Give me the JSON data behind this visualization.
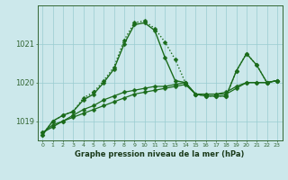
{
  "x_ticks": [
    0,
    1,
    2,
    3,
    4,
    5,
    6,
    7,
    8,
    9,
    10,
    11,
    12,
    13,
    14,
    15,
    16,
    17,
    18,
    19,
    20,
    21,
    22,
    23
  ],
  "series": [
    {
      "y": [
        1018.7,
        1018.85,
        1019.0,
        1019.1,
        1019.2,
        1019.3,
        1019.4,
        1019.5,
        1019.6,
        1019.7,
        1019.75,
        1019.8,
        1019.85,
        1019.9,
        1019.95,
        1019.7,
        1019.7,
        1019.7,
        1019.7,
        1019.85,
        1020.0,
        1020.0,
        1020.0,
        1020.05
      ],
      "style": "solid",
      "lw": 0.9
    },
    {
      "y": [
        1018.7,
        1018.9,
        1019.0,
        1019.15,
        1019.3,
        1019.4,
        1019.55,
        1019.65,
        1019.75,
        1019.8,
        1019.85,
        1019.9,
        1019.9,
        1019.95,
        1020.0,
        1019.7,
        1019.7,
        1019.7,
        1019.75,
        1019.9,
        1020.0,
        1020.0,
        1020.0,
        1020.05
      ],
      "style": "solid",
      "lw": 0.9
    },
    {
      "y": [
        1018.65,
        1019.0,
        1019.15,
        1019.25,
        1019.55,
        1019.7,
        1020.0,
        1020.35,
        1021.0,
        1021.5,
        1021.55,
        1021.35,
        1020.65,
        1020.05,
        1020.0,
        1019.7,
        1019.65,
        1019.65,
        1019.65,
        1020.3,
        1020.75,
        1020.45,
        1020.0,
        1020.05
      ],
      "style": "solid",
      "lw": 1.0
    },
    {
      "y": [
        1018.65,
        1019.0,
        1019.15,
        1019.25,
        1019.6,
        1019.75,
        1020.05,
        1020.4,
        1021.1,
        1021.55,
        1021.6,
        1021.4,
        1021.05,
        1020.6,
        1020.0,
        1019.7,
        1019.65,
        1019.65,
        1019.65,
        1020.3,
        1020.75,
        1020.45,
        1020.0,
        1020.05
      ],
      "style": "dotted",
      "lw": 1.0
    }
  ],
  "marker": "D",
  "markersize": 2.5,
  "line_color": "#1a6b1a",
  "bg_color": "#cce8eb",
  "grid_color": "#99ccd0",
  "xlabel": "Graphe pression niveau de la mer (hPa)",
  "ylim": [
    1018.5,
    1022.0
  ],
  "yticks": [
    1019,
    1020,
    1021
  ],
  "xlim": [
    -0.5,
    23.5
  ],
  "fig_bg": "#cce8eb"
}
